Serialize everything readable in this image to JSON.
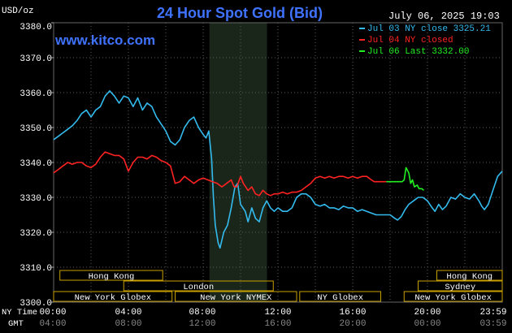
{
  "header": {
    "unit": "USD/oz",
    "title": "24 Hour Spot Gold (Bid)",
    "datetime": "July 06, 2025 19:03",
    "site": "www.kitco.com"
  },
  "legend": [
    {
      "label": "Jul 03 NY close 3325.21",
      "color": "#33bbee"
    },
    {
      "label": "Jul 04 NY closed",
      "color": "#ff2222"
    },
    {
      "label": "Jul 06 Last 3332.00",
      "color": "#22ee22"
    }
  ],
  "axis": {
    "row1_title": "NY Time",
    "row2_title": "GMT",
    "ny_ticks": [
      "00:00",
      "04:00",
      "08:00",
      "12:00",
      "16:00",
      "20:00",
      "23:59"
    ],
    "gmt_ticks": [
      "04:00",
      "08:00",
      "12:00",
      "16:00",
      "20:00",
      "00:00",
      "03:59"
    ]
  },
  "sessions": [
    {
      "label": "Hong Kong",
      "row": 0,
      "start": 0.67,
      "end": 11.67
    },
    {
      "label": "London",
      "row": 1,
      "start": 7.5,
      "end": 23.5
    },
    {
      "label": "New York Globex",
      "row": 2,
      "start": 0.0,
      "end": 12.67
    },
    {
      "label": "New York NYMEX",
      "row": 2,
      "start": 13.0,
      "end": 26.0
    },
    {
      "label": "NY Globex",
      "row": 2,
      "start": 26.33,
      "end": 35.0
    },
    {
      "label": "Hong Kong",
      "row": 0,
      "start": 41.0,
      "end": 48.0
    },
    {
      "label": "Sydney",
      "row": 1,
      "start": 39.0,
      "end": 48.0
    },
    {
      "label": "New York Globex",
      "row": 2,
      "start": 37.5,
      "end": 48.0
    }
  ],
  "chart_data": {
    "type": "line",
    "x_unit": "hours since 00:00 NY time (two-day axis, 0-48)",
    "ylim": [
      3300,
      3380
    ],
    "yticks": [
      3300.0,
      3310.0,
      3320.0,
      3330.0,
      3340.0,
      3350.0,
      3360.0,
      3370.0,
      3380.0
    ],
    "shaded_region": [
      16.67,
      22.83
    ],
    "series": [
      {
        "name": "Jul 03 NY close 3325.21",
        "color": "#33bbee",
        "points": [
          [
            0,
            3346.5
          ],
          [
            0.5,
            3347.5
          ],
          [
            1,
            3348.5
          ],
          [
            1.5,
            3349.5
          ],
          [
            2,
            3350.5
          ],
          [
            2.5,
            3352
          ],
          [
            3,
            3354
          ],
          [
            3.5,
            3355
          ],
          [
            4,
            3353
          ],
          [
            4.5,
            3355
          ],
          [
            5,
            3356
          ],
          [
            5.5,
            3359
          ],
          [
            6,
            3360.5
          ],
          [
            6.5,
            3359
          ],
          [
            7,
            3357
          ],
          [
            7.5,
            3359
          ],
          [
            8,
            3358.5
          ],
          [
            8.5,
            3356
          ],
          [
            9,
            3358.5
          ],
          [
            9.5,
            3355
          ],
          [
            10,
            3357
          ],
          [
            10.5,
            3356
          ],
          [
            11,
            3353
          ],
          [
            11.5,
            3351
          ],
          [
            12,
            3349
          ],
          [
            12.5,
            3346
          ],
          [
            13,
            3345
          ],
          [
            13.5,
            3346.5
          ],
          [
            14,
            3350
          ],
          [
            14.5,
            3352
          ],
          [
            15,
            3353
          ],
          [
            15.5,
            3350
          ],
          [
            16,
            3348
          ],
          [
            16.3,
            3347
          ],
          [
            16.6,
            3349
          ],
          [
            16.9,
            3341
          ],
          [
            17.1,
            3330
          ],
          [
            17.3,
            3322
          ],
          [
            17.6,
            3317
          ],
          [
            17.8,
            3315.5
          ],
          [
            18.2,
            3320
          ],
          [
            18.6,
            3322
          ],
          [
            19,
            3327
          ],
          [
            19.4,
            3333
          ],
          [
            19.7,
            3334
          ],
          [
            20,
            3328
          ],
          [
            20.5,
            3326
          ],
          [
            20.8,
            3323
          ],
          [
            21.2,
            3327
          ],
          [
            21.6,
            3324
          ],
          [
            22,
            3323
          ],
          [
            22.4,
            3327
          ],
          [
            22.8,
            3329
          ],
          [
            23.2,
            3327
          ],
          [
            23.6,
            3326
          ],
          [
            24,
            3327
          ],
          [
            24.5,
            3326
          ],
          [
            25,
            3326
          ],
          [
            25.5,
            3327
          ],
          [
            26,
            3330
          ],
          [
            26.5,
            3331
          ],
          [
            27,
            3331
          ],
          [
            27.5,
            3330
          ],
          [
            28,
            3328
          ],
          [
            28.5,
            3327.5
          ],
          [
            29,
            3328
          ],
          [
            29.5,
            3327
          ],
          [
            30,
            3327
          ],
          [
            30.5,
            3326.5
          ],
          [
            31,
            3327.5
          ],
          [
            31.5,
            3327
          ],
          [
            32,
            3327
          ],
          [
            32.5,
            3326
          ],
          [
            33,
            3326.5
          ],
          [
            33.5,
            3326
          ],
          [
            34,
            3325.5
          ],
          [
            34.5,
            3325
          ],
          [
            35,
            3325
          ],
          [
            35.5,
            3325
          ],
          [
            36,
            3325
          ],
          [
            36.5,
            3324
          ],
          [
            36.8,
            3323.5
          ],
          [
            37.2,
            3324.5
          ],
          [
            37.6,
            3326.5
          ],
          [
            38,
            3328
          ],
          [
            38.5,
            3329
          ],
          [
            39,
            3330
          ],
          [
            39.5,
            3330
          ],
          [
            40,
            3329
          ],
          [
            40.5,
            3327
          ],
          [
            40.8,
            3326
          ],
          [
            41.2,
            3328
          ],
          [
            41.6,
            3326.5
          ],
          [
            42,
            3327.5
          ],
          [
            42.5,
            3330
          ],
          [
            43,
            3329.5
          ],
          [
            43.5,
            3331
          ],
          [
            44,
            3330
          ],
          [
            44.5,
            3329.5
          ],
          [
            45,
            3331
          ],
          [
            45.5,
            3329
          ],
          [
            45.8,
            3327.5
          ],
          [
            46.1,
            3326.5
          ],
          [
            46.5,
            3328
          ],
          [
            47,
            3332
          ],
          [
            47.5,
            3336
          ],
          [
            48,
            3337.5
          ]
        ]
      },
      {
        "name": "Jul 04 NY closed",
        "color": "#ff2222",
        "points": [
          [
            0,
            3337
          ],
          [
            0.5,
            3338
          ],
          [
            1,
            3339
          ],
          [
            1.5,
            3340
          ],
          [
            2,
            3339.5
          ],
          [
            2.5,
            3340
          ],
          [
            3,
            3340
          ],
          [
            3.5,
            3339
          ],
          [
            4,
            3338.5
          ],
          [
            4.5,
            3339.5
          ],
          [
            5,
            3341.5
          ],
          [
            5.5,
            3343
          ],
          [
            6,
            3342.5
          ],
          [
            6.5,
            3342
          ],
          [
            7,
            3342
          ],
          [
            7.5,
            3341
          ],
          [
            8,
            3337.5
          ],
          [
            8.5,
            3340
          ],
          [
            9,
            3341.5
          ],
          [
            9.5,
            3341.5
          ],
          [
            10,
            3341
          ],
          [
            10.5,
            3342
          ],
          [
            11,
            3341.5
          ],
          [
            11.5,
            3340.5
          ],
          [
            12,
            3340
          ],
          [
            12.5,
            3339
          ],
          [
            13,
            3334
          ],
          [
            13.5,
            3334.5
          ],
          [
            14,
            3336
          ],
          [
            14.5,
            3335
          ],
          [
            15,
            3334
          ],
          [
            15.5,
            3335
          ],
          [
            16,
            3335.5
          ],
          [
            16.5,
            3335
          ],
          [
            17,
            3334.5
          ],
          [
            17.5,
            3334
          ],
          [
            18,
            3333
          ],
          [
            18.5,
            3334
          ],
          [
            19,
            3335
          ],
          [
            19.3,
            3333
          ],
          [
            19.6,
            3333
          ],
          [
            20,
            3336
          ],
          [
            20.3,
            3334
          ],
          [
            20.8,
            3332
          ],
          [
            21.2,
            3333
          ],
          [
            21.6,
            3331
          ],
          [
            22,
            3330.5
          ],
          [
            22.4,
            3332
          ],
          [
            22.8,
            3331
          ],
          [
            23.2,
            3330.5
          ],
          [
            23.6,
            3331
          ],
          [
            24,
            3331
          ],
          [
            24.5,
            3331.5
          ],
          [
            25,
            3331
          ],
          [
            25.5,
            3331.5
          ],
          [
            26,
            3331.5
          ],
          [
            26.5,
            3332
          ],
          [
            27,
            3333
          ],
          [
            27.5,
            3334
          ],
          [
            28,
            3335.5
          ],
          [
            28.5,
            3336
          ],
          [
            29,
            3335.5
          ],
          [
            29.5,
            3336
          ],
          [
            30,
            3335.5
          ],
          [
            30.5,
            3336
          ],
          [
            31,
            3336
          ],
          [
            31.5,
            3335.5
          ],
          [
            32,
            3336
          ],
          [
            32.5,
            3335.5
          ],
          [
            33,
            3336
          ],
          [
            33.5,
            3336
          ],
          [
            34,
            3335
          ],
          [
            34.3,
            3334.5
          ],
          [
            34.9,
            3334.5
          ],
          [
            35.2,
            3334.5
          ],
          [
            35.6,
            3334.5
          ]
        ]
      },
      {
        "name": "Jul 06 Last 3332.00",
        "color": "#22ee22",
        "points": [
          [
            35.6,
            3334.5
          ],
          [
            36.5,
            3334.5
          ],
          [
            37.3,
            3334.5
          ],
          [
            37.5,
            3335
          ],
          [
            37.7,
            3338.5
          ],
          [
            38,
            3337
          ],
          [
            38.2,
            3334
          ],
          [
            38.4,
            3335
          ],
          [
            38.6,
            3333
          ],
          [
            38.9,
            3333.5
          ],
          [
            39.1,
            3332.5
          ],
          [
            39.4,
            3332.5
          ],
          [
            39.6,
            3332
          ]
        ]
      }
    ]
  }
}
